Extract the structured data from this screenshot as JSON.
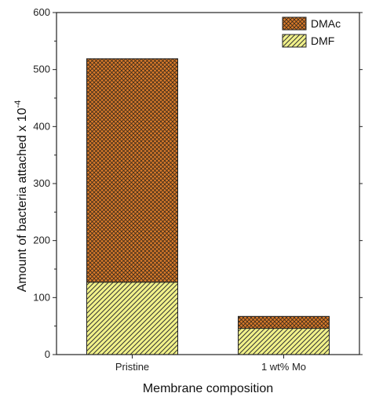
{
  "chart_data": {
    "type": "bar",
    "stacked": true,
    "categories": [
      "Pristine",
      "1 wt% Mo"
    ],
    "series": [
      {
        "name": "DMF",
        "values": [
          127,
          46
        ],
        "color": "#f2f28a",
        "pattern": "diagonal-hatch"
      },
      {
        "name": "DMAc",
        "values": [
          392,
          21
        ],
        "color": "#d97a2a",
        "pattern": "cross-hatch"
      }
    ],
    "title": "",
    "xlabel": "Membrane composition",
    "ylabel": "Amount of bacteria attached x 10",
    "ylabel_exponent": "-4",
    "ylim": [
      0,
      600
    ],
    "yticks": [
      "0",
      "100",
      "200",
      "300",
      "400",
      "500",
      "600"
    ],
    "grid": false,
    "legend": {
      "position": "top-right",
      "order": [
        "DMAc",
        "DMF"
      ]
    }
  }
}
